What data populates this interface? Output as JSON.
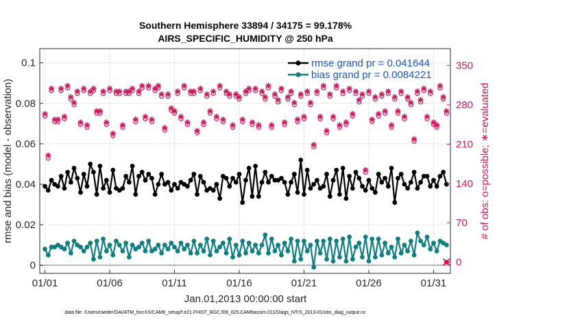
{
  "chart_data": {
    "type": "line",
    "title": "Southern Hemisphere 33894 / 34175 = 99.178%",
    "subtitle": "AIRS_SPECIFIC_HUMIDITY @ 250 hPa",
    "xlabel": "Jan.01,2013 00:00:00 start",
    "ylabel": "rmse and bias (model - observation)",
    "ylabel_right": "# of obs: o=possible; ∗=evaluated",
    "footnote": "data file: /Users/raeder/DAI/ATM_forcXX/CAM6_setup/f.e21.FHIST_BGC.f09_025.CAM6assim.011/Diags_NTrS_2013-01/obs_diag_output.nc",
    "xlim": [
      0.6,
      32.3
    ],
    "ylim": [
      -0.004,
      0.107
    ],
    "ylim_right": [
      -20,
      380
    ],
    "x_ticks": [
      1,
      6,
      11,
      16,
      21,
      26,
      31
    ],
    "x_tick_labels": [
      "01/01",
      "01/06",
      "01/11",
      "01/16",
      "01/21",
      "01/26",
      "01/31"
    ],
    "y_ticks": [
      0,
      0.02,
      0.04,
      0.06,
      0.08,
      0.1
    ],
    "y_tick_labels": [
      "0",
      "0.02",
      "0.04",
      "0.06",
      "0.08",
      "0.1"
    ],
    "y_ticks_right": [
      0,
      70,
      140,
      210,
      280,
      350
    ],
    "y_tick_labels_right": [
      "0",
      "70",
      "140",
      "210",
      "280",
      "350"
    ],
    "legend_position": "top-right",
    "colors": {
      "rmse": "#000000",
      "bias": "#0d7f7f",
      "obs": "#d4145a",
      "legend_text": "#1a53d6",
      "zero_line": "#b3b3b3"
    },
    "x": [
      1.0,
      1.25,
      1.5,
      1.75,
      2.0,
      2.25,
      2.5,
      2.75,
      3.0,
      3.25,
      3.5,
      3.75,
      4.0,
      4.25,
      4.5,
      4.75,
      5.0,
      5.25,
      5.5,
      5.75,
      6.0,
      6.25,
      6.5,
      6.75,
      7.0,
      7.25,
      7.5,
      7.75,
      8.0,
      8.25,
      8.5,
      8.75,
      9.0,
      9.25,
      9.5,
      9.75,
      10.0,
      10.25,
      10.5,
      10.75,
      11.0,
      11.25,
      11.5,
      11.75,
      12.0,
      12.25,
      12.5,
      12.75,
      13.0,
      13.25,
      13.5,
      13.75,
      14.0,
      14.25,
      14.5,
      14.75,
      15.0,
      15.25,
      15.5,
      15.75,
      16.0,
      16.25,
      16.5,
      16.75,
      17.0,
      17.25,
      17.5,
      17.75,
      18.0,
      18.25,
      18.5,
      18.75,
      19.0,
      19.25,
      19.5,
      19.75,
      20.0,
      20.25,
      20.5,
      20.75,
      21.0,
      21.25,
      21.5,
      21.75,
      22.0,
      22.25,
      22.5,
      22.75,
      23.0,
      23.25,
      23.5,
      23.75,
      24.0,
      24.25,
      24.5,
      24.75,
      25.0,
      25.25,
      25.5,
      25.75,
      26.0,
      26.25,
      26.5,
      26.75,
      27.0,
      27.25,
      27.5,
      27.75,
      28.0,
      28.25,
      28.5,
      28.75,
      29.0,
      29.25,
      29.5,
      29.75,
      30.0,
      30.25,
      30.5,
      30.75,
      31.0,
      31.25,
      31.5,
      31.75,
      32.0
    ],
    "series": [
      {
        "name": "rmse grand pr = 0.041644",
        "axis": "left",
        "values": [
          0.039,
          0.037,
          0.042,
          0.04,
          0.039,
          0.044,
          0.038,
          0.046,
          0.041,
          0.048,
          0.043,
          0.036,
          0.045,
          0.039,
          0.05,
          0.046,
          0.035,
          0.049,
          0.038,
          0.042,
          0.036,
          0.047,
          0.038,
          0.037,
          0.038,
          0.044,
          0.041,
          0.049,
          0.035,
          0.044,
          0.046,
          0.042,
          0.045,
          0.043,
          0.035,
          0.04,
          0.045,
          0.04,
          0.041,
          0.037,
          0.04,
          0.038,
          0.041,
          0.04,
          0.039,
          0.042,
          0.045,
          0.035,
          0.044,
          0.041,
          0.037,
          0.038,
          0.037,
          0.04,
          0.033,
          0.044,
          0.043,
          0.039,
          0.043,
          0.041,
          0.045,
          0.031,
          0.042,
          0.048,
          0.034,
          0.049,
          0.034,
          0.041,
          0.046,
          0.041,
          0.044,
          0.042,
          0.042,
          0.043,
          0.041,
          0.035,
          0.041,
          0.045,
          0.036,
          0.052,
          0.035,
          0.047,
          0.038,
          0.04,
          0.042,
          0.038,
          0.039,
          0.045,
          0.034,
          0.042,
          0.047,
          0.035,
          0.048,
          0.033,
          0.044,
          0.038,
          0.046,
          0.043,
          0.039,
          0.037,
          0.042,
          0.038,
          0.036,
          0.045,
          0.041,
          0.043,
          0.039,
          0.048,
          0.031,
          0.043,
          0.045,
          0.04,
          0.038,
          0.041,
          0.046,
          0.038,
          0.041,
          0.044,
          0.044,
          0.039,
          0.042,
          0.039,
          0.044,
          0.046,
          0.04
        ]
      },
      {
        "name": "bias grand pr = 0.0084221",
        "axis": "left",
        "values": [
          0.008,
          0.005,
          0.009,
          0.009,
          0.01,
          0.009,
          0.008,
          0.011,
          0.006,
          0.012,
          0.01,
          0.009,
          0.007,
          0.009,
          0.011,
          0.003,
          0.012,
          0.004,
          0.013,
          0.007,
          0.01,
          0.005,
          0.012,
          0.01,
          0.007,
          0.011,
          0.004,
          0.01,
          0.008,
          0.009,
          0.011,
          0.007,
          0.012,
          0.007,
          0.008,
          0.01,
          0.006,
          0.01,
          0.008,
          0.011,
          0.009,
          0.007,
          0.011,
          0.008,
          0.01,
          0.006,
          0.012,
          0.006,
          0.01,
          0.007,
          0.013,
          0.005,
          0.012,
          0.007,
          0.009,
          0.011,
          0.006,
          0.013,
          0.004,
          0.01,
          0.005,
          0.012,
          0.006,
          0.011,
          0.007,
          0.01,
          0.006,
          0.01,
          0.015,
          0.006,
          0.013,
          0.007,
          0.01,
          0.005,
          0.011,
          0.007,
          0.013,
          0.002,
          0.012,
          0.003,
          0.012,
          0.007,
          0.01,
          -0.001,
          0.012,
          0.006,
          0.012,
          0.003,
          0.013,
          0.002,
          0.012,
          0.004,
          0.013,
          0.002,
          0.014,
          0.003,
          0.009,
          0.011,
          0.004,
          0.014,
          0.002,
          0.013,
          0.004,
          0.013,
          0.005,
          0.011,
          0.006,
          0.009,
          0.004,
          0.013,
          0.006,
          0.01,
          0.007,
          0.012,
          0.005,
          0.016,
          0.012,
          0.01,
          0.014,
          0.008,
          0.011,
          0.007,
          0.012,
          0.011,
          0.01
        ]
      },
      {
        "name": "obs possible",
        "axis": "right",
        "marker": "o",
        "values": [
          260,
          185,
          305,
          250,
          250,
          305,
          255,
          310,
          290,
          280,
          300,
          245,
          305,
          240,
          300,
          305,
          265,
          265,
          300,
          245,
          305,
          225,
          300,
          300,
          240,
          300,
          300,
          305,
          250,
          300,
          310,
          255,
          310,
          250,
          305,
          310,
          295,
          235,
          295,
          270,
          265,
          300,
          255,
          310,
          245,
          300,
          300,
          230,
          305,
          245,
          295,
          265,
          300,
          255,
          310,
          250,
          300,
          295,
          240,
          295,
          290,
          250,
          300,
          305,
          245,
          305,
          240,
          300,
          290,
          310,
          240,
          295,
          285,
          305,
          245,
          290,
          300,
          280,
          250,
          295,
          255,
          300,
          280,
          205,
          300,
          255,
          310,
          230,
          295,
          255,
          310,
          240,
          300,
          245,
          305,
          260,
          300,
          285,
          295,
          160,
          300,
          250,
          290,
          260,
          295,
          265,
          300,
          240,
          290,
          265,
          300,
          255,
          290,
          280,
          215,
          300,
          285,
          305,
          255,
          300,
          245,
          240,
          310,
          290,
          265
        ]
      },
      {
        "name": "obs evaluated",
        "axis": "right",
        "marker": "*",
        "values": [
          264,
          190,
          309,
          254,
          254,
          309,
          259,
          314,
          294,
          284,
          304,
          249,
          309,
          244,
          304,
          309,
          269,
          269,
          304,
          249,
          309,
          229,
          304,
          304,
          244,
          304,
          304,
          309,
          254,
          304,
          314,
          259,
          314,
          254,
          309,
          314,
          299,
          239,
          299,
          274,
          269,
          304,
          259,
          314,
          249,
          304,
          304,
          234,
          309,
          249,
          299,
          269,
          304,
          259,
          314,
          254,
          304,
          299,
          244,
          299,
          294,
          254,
          304,
          309,
          249,
          309,
          244,
          304,
          294,
          314,
          244,
          299,
          289,
          309,
          249,
          294,
          304,
          284,
          254,
          299,
          259,
          304,
          284,
          209,
          304,
          259,
          314,
          234,
          299,
          259,
          314,
          244,
          304,
          249,
          309,
          264,
          304,
          289,
          299,
          164,
          304,
          254,
          294,
          264,
          299,
          269,
          304,
          244,
          294,
          269,
          304,
          259,
          294,
          284,
          219,
          304,
          289,
          309,
          259,
          304,
          249,
          244,
          314,
          294,
          269
        ]
      }
    ],
    "end_marker": {
      "x": 32.0,
      "value_right": 0
    }
  }
}
